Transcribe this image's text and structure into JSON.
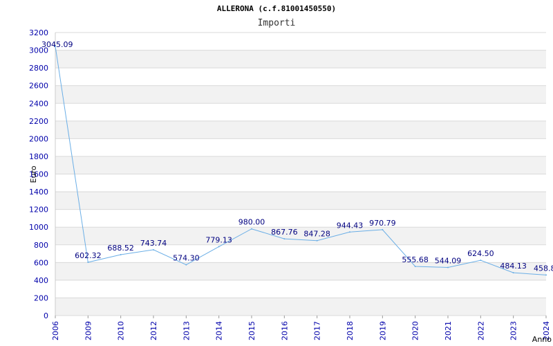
{
  "chart_data": {
    "type": "line",
    "title": "ALLERONA (c.f.81001450550)",
    "subtitle": "Importi",
    "xlabel": "Anno",
    "ylabel": "Euro",
    "ylim": [
      0,
      3200
    ],
    "y_ticks": [
      0,
      200,
      400,
      600,
      800,
      1000,
      1200,
      1400,
      1600,
      1800,
      2000,
      2200,
      2400,
      2600,
      2800,
      3000,
      3200
    ],
    "grid": "horizontal-bands",
    "categories": [
      "2006",
      "2009",
      "2010",
      "2012",
      "2013",
      "2014",
      "2015",
      "2016",
      "2017",
      "2018",
      "2019",
      "2020",
      "2021",
      "2022",
      "2023",
      "2024"
    ],
    "series": [
      {
        "values": [
          3045.09,
          602.32,
          688.52,
          743.74,
          574.3,
          779.13,
          980.0,
          867.76,
          847.28,
          944.43,
          970.79,
          555.68,
          544.09,
          624.5,
          484.13,
          458.8
        ],
        "labels": [
          "3045.09",
          "602.32",
          "688.52",
          "743.74",
          "574.30",
          "779.13",
          "980.00",
          "867.76",
          "847.28",
          "944.43",
          "970.79",
          "555.68",
          "544.09",
          "624.50",
          "484.13",
          "458.8"
        ]
      }
    ],
    "colors": {
      "line": "#6aaee6",
      "band": "#f2f2f2",
      "grid": "#d9d9d9",
      "tick": "#0000aa",
      "label": "#000080"
    }
  }
}
